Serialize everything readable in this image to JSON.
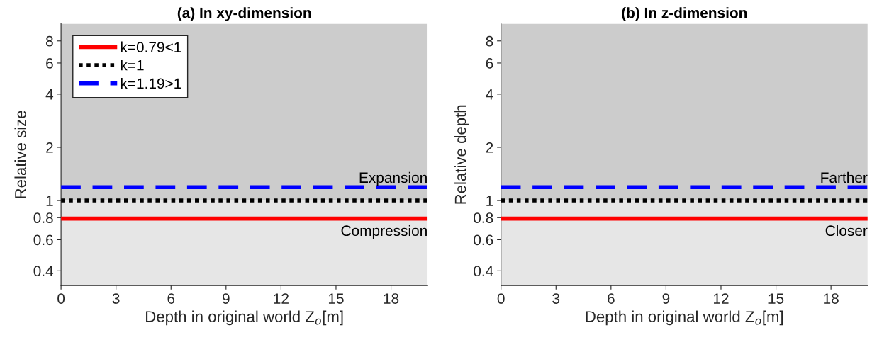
{
  "chart_data": [
    {
      "type": "line",
      "title": "(a) In xy-dimension",
      "xlabel": "Depth in original world Z$_{o}$[m]",
      "ylabel": "Relative size",
      "log": "y",
      "xlim": [
        0,
        20
      ],
      "ylim": [
        0.33,
        10
      ],
      "xticks": [
        0,
        3,
        6,
        9,
        12,
        15,
        18
      ],
      "yticks": [
        0.4,
        0.6,
        0.8,
        1,
        2,
        4,
        6,
        8
      ],
      "grid": false,
      "legend": "top left",
      "bands": [
        {
          "axis": "y",
          "from": 1,
          "to": 10,
          "color": "#cccccc",
          "label": "Expansion"
        },
        {
          "axis": "y",
          "from": 0.33,
          "to": 1,
          "color": "#e6e6e6",
          "label": "Compression"
        }
      ],
      "ref_lines": [
        {
          "axis": "y",
          "value": 0.79,
          "label": "k=0.79<1",
          "color": "#ff0000",
          "line_style": "solid"
        },
        {
          "axis": "y",
          "value": 1,
          "label": "k=1",
          "color": "#000000",
          "line_style": "dotted"
        },
        {
          "axis": "y",
          "value": 1.19,
          "label": "k=1.19>1",
          "color": "#0000ff",
          "line_style": "dashed"
        }
      ]
    },
    {
      "type": "line",
      "title": "(b) In z-dimension",
      "xlabel": "Depth in original world Z$_{o}$[m]",
      "ylabel": "Relative depth",
      "log": "y",
      "xlim": [
        0,
        20
      ],
      "ylim": [
        0.33,
        10
      ],
      "xticks": [
        0,
        3,
        6,
        9,
        12,
        15,
        18
      ],
      "yticks": [
        0.4,
        0.6,
        0.8,
        1,
        2,
        4,
        6,
        8
      ],
      "grid": false,
      "legend": false,
      "bands": [
        {
          "axis": "y",
          "from": 1,
          "to": 10,
          "color": "#cccccc",
          "label": "Farther"
        },
        {
          "axis": "y",
          "from": 0.33,
          "to": 1,
          "color": "#e6e6e6",
          "label": "Closer"
        }
      ],
      "ref_lines": [
        {
          "axis": "y",
          "value": 0.79,
          "color": "#ff0000",
          "line_style": "solid"
        },
        {
          "axis": "y",
          "value": 1,
          "color": "#000000",
          "line_style": "dotted"
        },
        {
          "axis": "y",
          "value": 1.19,
          "color": "#0000ff",
          "line_style": "dashed"
        }
      ]
    }
  ]
}
